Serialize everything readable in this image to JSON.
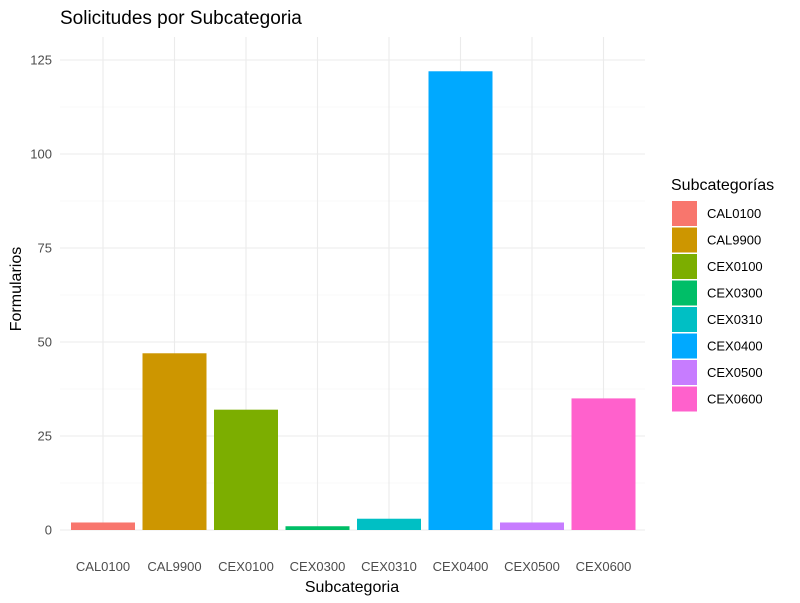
{
  "chart_data": {
    "type": "bar",
    "title": "Solicitudes por Subcategoria",
    "xlabel": "Subcategoria",
    "ylabel": "Formularios",
    "categories": [
      "CAL0100",
      "CAL9900",
      "CEX0100",
      "CEX0300",
      "CEX0310",
      "CEX0400",
      "CEX0500",
      "CEX0600"
    ],
    "values": [
      2,
      47,
      32,
      1,
      3,
      122,
      2,
      35
    ],
    "colors": [
      "#F8766D",
      "#CD9600",
      "#7CAE00",
      "#00BE67",
      "#00BFC4",
      "#00A9FF",
      "#C77CFF",
      "#FF61CC"
    ],
    "ylim": [
      0,
      125
    ],
    "yticks": [
      0,
      25,
      50,
      75,
      100,
      125
    ],
    "grid": true,
    "legend": {
      "title": "Subcategorías",
      "position": "right",
      "entries": [
        "CAL0100",
        "CAL9900",
        "CEX0100",
        "CEX0300",
        "CEX0310",
        "CEX0400",
        "CEX0500",
        "CEX0600"
      ]
    }
  }
}
